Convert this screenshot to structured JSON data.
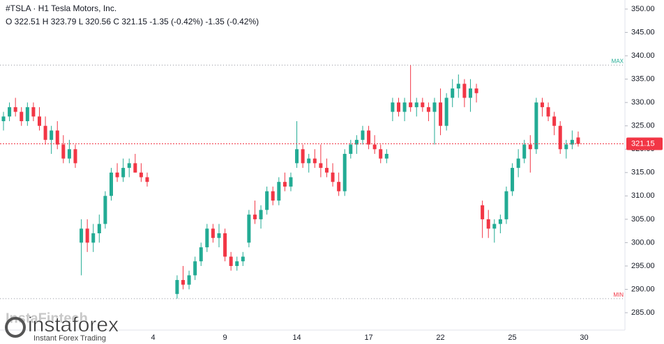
{
  "chart_data": {
    "type": "candlestick",
    "title": "#TSLA · H1 Tesla Motors, Inc.",
    "subtitle": "O 322.51 H 323.79 L 320.56 C 321.15 -1.35 (-0.42%) -1.35 (-0.42%)",
    "categories": [
      null,
      null,
      null,
      null,
      null,
      null,
      null,
      null,
      null,
      null,
      null,
      null,
      null,
      null,
      null,
      null,
      null,
      null,
      null,
      null,
      null,
      null,
      null,
      null,
      null,
      "4",
      null,
      null,
      null,
      null,
      null,
      null,
      null,
      null,
      null,
      null,
      null,
      "9",
      null,
      null,
      null,
      null,
      null,
      null,
      null,
      null,
      null,
      null,
      null,
      "14",
      null,
      null,
      null,
      null,
      null,
      null,
      null,
      null,
      null,
      null,
      null,
      "17",
      null,
      null,
      null,
      null,
      null,
      null,
      null,
      null,
      null,
      null,
      null,
      "22",
      null,
      null,
      null,
      null,
      null,
      null,
      null,
      null,
      null,
      null,
      null,
      "25",
      null,
      null,
      null,
      null,
      null,
      null,
      null,
      null,
      null,
      null,
      null,
      "30"
    ],
    "open": [
      326,
      327,
      329,
      328,
      326,
      329,
      327,
      325,
      322,
      324,
      321,
      318,
      320,
      300,
      303,
      300,
      302,
      304,
      310,
      315,
      314,
      316,
      317,
      315,
      314,
      null,
      null,
      null,
      null,
      289,
      292,
      291,
      293,
      296,
      299,
      303,
      301,
      302,
      297,
      295,
      296,
      300,
      306,
      305,
      307,
      311,
      309,
      313,
      312,
      317,
      320,
      317,
      318,
      317,
      316,
      315,
      313,
      311,
      319,
      321,
      322,
      324,
      321,
      320,
      318,
      328,
      330,
      328,
      330,
      329,
      330,
      329,
      328,
      330,
      325,
      331,
      333,
      334,
      331,
      333,
      308,
      305,
      303,
      304,
      305,
      311,
      316,
      318,
      321,
      320,
      330,
      329,
      327,
      325,
      320,
      321,
      322.51,
      null
    ],
    "high": [
      328,
      330,
      331,
      329,
      330,
      330,
      329,
      327,
      325,
      326,
      323,
      322,
      321,
      305,
      305,
      304,
      306,
      311,
      316,
      317,
      318,
      318,
      319,
      317,
      315,
      null,
      null,
      null,
      null,
      293,
      295,
      294,
      297,
      300,
      304,
      304,
      304,
      303,
      298,
      297,
      298,
      307,
      309,
      308,
      312,
      312,
      314,
      315,
      315,
      326,
      321,
      319,
      320,
      321,
      318,
      317,
      315,
      320,
      322,
      323,
      325,
      325,
      323,
      321,
      320,
      331,
      331,
      331,
      338,
      331,
      331,
      330,
      331,
      333,
      332,
      335,
      336,
      335,
      335,
      334,
      309,
      307,
      305,
      306,
      312,
      317,
      320,
      322,
      323,
      331,
      331,
      330,
      328,
      326,
      322,
      324,
      323.79,
      null
    ],
    "low": [
      324,
      326,
      327,
      325,
      325,
      326,
      324,
      321,
      319,
      320,
      317,
      317,
      316,
      293,
      298,
      298,
      300,
      303,
      309,
      313,
      313,
      314,
      315,
      313,
      312,
      null,
      null,
      null,
      null,
      288,
      290,
      290,
      292,
      295,
      298,
      300,
      299,
      296,
      294,
      294,
      295,
      299,
      304,
      303,
      306,
      308,
      308,
      311,
      311,
      316,
      316,
      315,
      316,
      314,
      314,
      312,
      310,
      310,
      318,
      319,
      321,
      320,
      319,
      317,
      317,
      326,
      327,
      326,
      328,
      327,
      328,
      326,
      321,
      323,
      324,
      329,
      331,
      329,
      328,
      330,
      301,
      301,
      300,
      302,
      304,
      310,
      314,
      317,
      315,
      319,
      327,
      326,
      323,
      319,
      318,
      320,
      320.56,
      null
    ],
    "close": [
      327,
      329,
      328,
      326,
      329,
      327,
      325,
      322,
      324,
      321,
      318,
      320,
      317,
      303,
      300,
      302,
      304,
      310,
      315,
      314,
      316,
      317,
      315,
      314,
      313,
      null,
      null,
      null,
      null,
      292,
      291,
      293,
      296,
      299,
      303,
      301,
      302,
      297,
      295,
      296,
      297,
      306,
      305,
      307,
      311,
      309,
      313,
      312,
      314,
      320,
      317,
      318,
      317,
      316,
      315,
      313,
      311,
      319,
      321,
      322,
      324,
      321,
      320,
      318,
      319,
      330,
      328,
      330,
      329,
      330,
      329,
      328,
      330,
      325,
      331,
      333,
      334,
      331,
      333,
      332,
      305,
      303,
      304,
      305,
      311,
      316,
      318,
      321,
      320,
      330,
      329,
      327,
      325,
      320,
      321,
      322,
      321.15,
      null
    ],
    "up_color": "#22ab94",
    "down_color": "#f23645",
    "ylim": [
      281.28,
      351.94
    ],
    "yticks": [
      {
        "value": 285,
        "label": "285.00"
      },
      {
        "value": 290,
        "label": "290.00"
      },
      {
        "value": 295,
        "label": "295.00"
      },
      {
        "value": 300,
        "label": "300.00"
      },
      {
        "value": 305,
        "label": "305.00"
      },
      {
        "value": 310,
        "label": "310.00"
      },
      {
        "value": 315,
        "label": "315.00"
      },
      {
        "value": 320,
        "label": "320.00"
      },
      {
        "value": 325,
        "label": "325.00"
      },
      {
        "value": 330,
        "label": "330.00"
      },
      {
        "value": 335,
        "label": "335.00"
      },
      {
        "value": 340,
        "label": "340.00"
      },
      {
        "value": 345,
        "label": "345.00"
      },
      {
        "value": 350,
        "label": "350.00"
      }
    ],
    "last_price": {
      "value": 321.15,
      "label": "321.15"
    },
    "max_line": {
      "value": 338,
      "label": "MAX"
    },
    "min_line": {
      "value": 288,
      "label": "MIN"
    },
    "grid": false
  },
  "watermark": {
    "brand": "instaforex",
    "tagline": "Instant Forex Trading",
    "faint": "InstaFintech"
  }
}
